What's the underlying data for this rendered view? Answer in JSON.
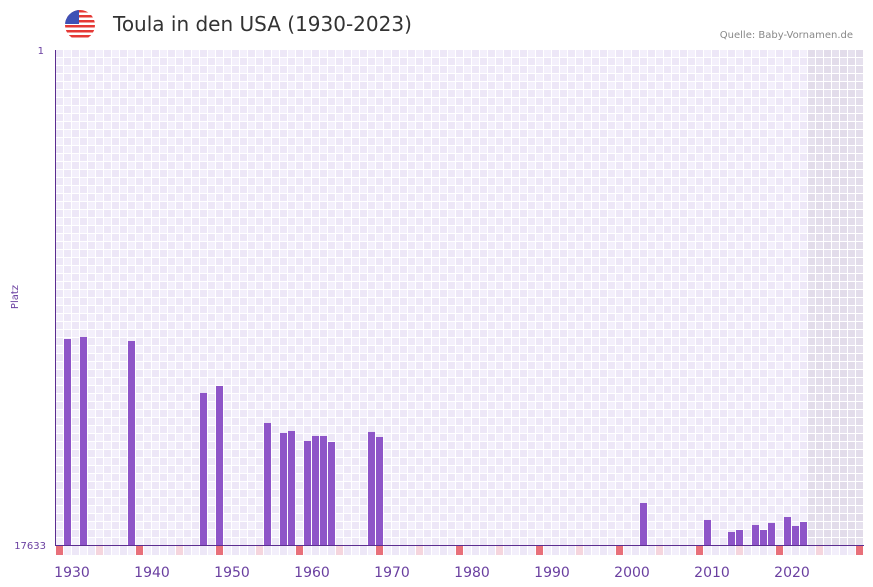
{
  "header": {
    "title": "Toula in den USA (1930-2023)",
    "source": "Quelle: Baby-Vornamen.de",
    "flag_icon": "us-flag-icon"
  },
  "chart_data": {
    "type": "bar",
    "title": "Toula in den USA (1930-2023)",
    "xlabel": "",
    "ylabel": "Platz",
    "x_range": [
      1930,
      2030
    ],
    "ylim": [
      1,
      17633
    ],
    "y_inverted": true,
    "y_tick_labels": [
      "1",
      "17633"
    ],
    "x_tick_labels": [
      "1930",
      "1940",
      "1950",
      "1960",
      "1970",
      "1980",
      "1990",
      "2000",
      "2010",
      "2020"
    ],
    "future_shaded_from": 2024,
    "grid": true,
    "colors": {
      "bar": "#8e55c8",
      "axis": "#5b2d90",
      "decade_marker": "#e8707a",
      "half_decade_marker": "#f5d5dd",
      "future": "#e0dbea"
    },
    "years": [
      1931,
      1933,
      1939,
      1948,
      1950,
      1956,
      1958,
      1959,
      1961,
      1962,
      1963,
      1964,
      1969,
      1970,
      2003,
      2011,
      2014,
      2015,
      2017,
      2018,
      2019,
      2021,
      2022,
      2023
    ],
    "values": [
      10295,
      10224,
      10366,
      12218,
      11969,
      13287,
      13643,
      13572,
      13928,
      13750,
      13750,
      13964,
      13607,
      13786,
      16137,
      16742,
      17170,
      17099,
      16921,
      17099,
      16850,
      16636,
      16956,
      16814
    ]
  }
}
